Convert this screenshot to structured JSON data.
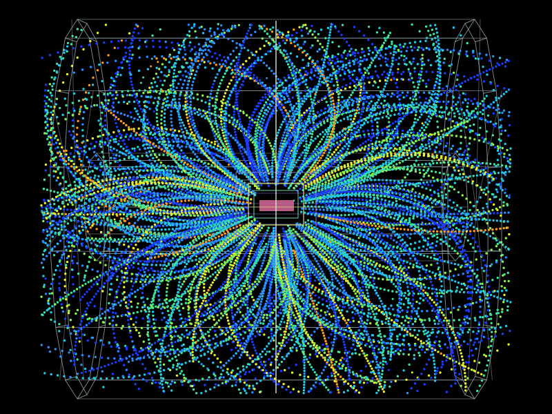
{
  "scene": {
    "description_free": true,
    "background_color": "#000000",
    "detector_wire_color": "#9fb0b8",
    "beam_axis_color": "#cfe8cf",
    "inner_detector_colors": [
      "#8a7fd6",
      "#d8e07a",
      "#d86a9a",
      "#6fd6b0"
    ],
    "track_palette": [
      "#1a3cff",
      "#2a8cff",
      "#22c8e8",
      "#3fe0a0",
      "#8ff04a",
      "#e8f030",
      "#ff9a20"
    ],
    "seed": 17,
    "track_count": 320
  }
}
